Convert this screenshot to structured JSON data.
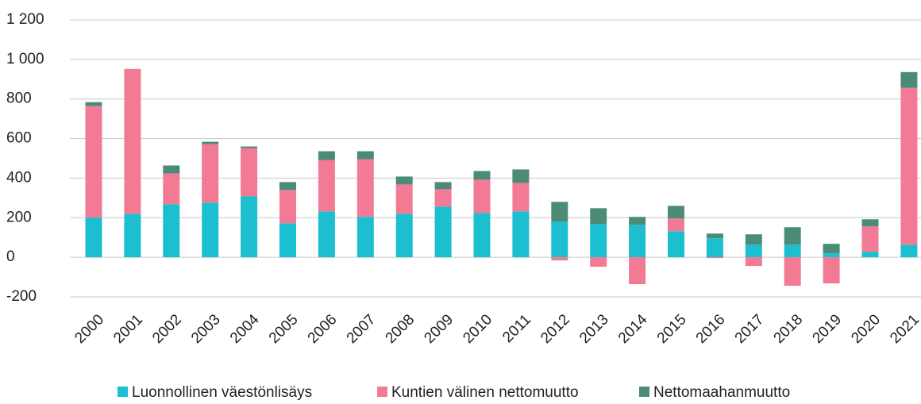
{
  "chart_data": {
    "type": "stacked_bar",
    "categories": [
      "2000",
      "2001",
      "2002",
      "2003",
      "2004",
      "2005",
      "2006",
      "2007",
      "2008",
      "2009",
      "2010",
      "2011",
      "2012",
      "2013",
      "2014",
      "2015",
      "2016",
      "2017",
      "2018",
      "2019",
      "2020",
      "2021"
    ],
    "series": [
      {
        "name": "Luonnollinen väestönlisäys",
        "color": "#1bbfd0",
        "values": [
          200,
          220,
          268,
          276,
          308,
          172,
          232,
          204,
          220,
          256,
          224,
          232,
          180,
          168,
          164,
          132,
          96,
          64,
          64,
          20,
          28,
          64
        ]
      },
      {
        "name": "Kuntien välinen nettomuutto",
        "color": "#f27a94",
        "values": [
          564,
          732,
          156,
          296,
          244,
          168,
          260,
          292,
          148,
          88,
          168,
          144,
          -16,
          -48,
          -136,
          64,
          -4,
          -44,
          -144,
          -132,
          128,
          792
        ]
      },
      {
        "name": "Nettomaahanmuutto",
        "color": "#4b8b78",
        "values": [
          20,
          0,
          40,
          12,
          8,
          40,
          44,
          40,
          40,
          36,
          44,
          68,
          100,
          80,
          40,
          64,
          24,
          52,
          88,
          48,
          36,
          80
        ]
      }
    ],
    "ylim": [
      -200,
      1200
    ],
    "yticks": [
      -200,
      0,
      200,
      400,
      600,
      800,
      {
        "value": 1000,
        "label": "1 000"
      },
      {
        "value": 1200,
        "label": "1 200"
      }
    ],
    "grid": true,
    "legend": "bottom"
  }
}
